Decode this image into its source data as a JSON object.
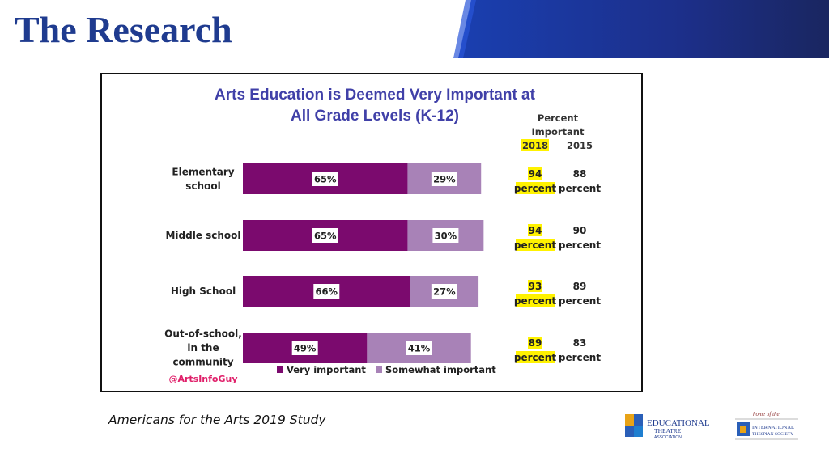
{
  "slide": {
    "title": "The Research",
    "caption": "Americans for the Arts 2019 Study",
    "accent_color": "#1f3b8f"
  },
  "logos": {
    "eta_line1": "EDUCATIONAL",
    "eta_line2": "THEATRE",
    "eta_line3": "ASSOCIATION",
    "home_of": "home of the",
    "its_line1": "INTERNATIONAL",
    "its_line2": "THESPIAN SOCIETY"
  },
  "chart_data": {
    "type": "bar",
    "stacked": true,
    "orientation": "horizontal",
    "title_lines": [
      "Arts Education is Deemed Very Important at",
      "All Grade Levels (K-12)"
    ],
    "categories": [
      [
        "Elementary",
        "school"
      ],
      [
        "Middle school"
      ],
      [
        "High School"
      ],
      [
        "Out-of-school,",
        "in the",
        "community"
      ]
    ],
    "series": [
      {
        "name": "Very important",
        "values": [
          65,
          65,
          66,
          49
        ],
        "labels": [
          "65%",
          "65%",
          "66%",
          "49%"
        ],
        "color": "#7b0a6e"
      },
      {
        "name": "Somewhat important",
        "values": [
          29,
          30,
          27,
          41
        ],
        "labels": [
          "29%",
          "30%",
          "27%",
          "41%"
        ],
        "color": "#a882b7"
      }
    ],
    "xlim": [
      0,
      100
    ],
    "percent_important": {
      "header_lines": [
        "Percent",
        "Important"
      ],
      "years": [
        "2018",
        "2015"
      ],
      "values_2018": [
        "94",
        "94",
        "93",
        "89"
      ],
      "values_2015": [
        "88",
        "90",
        "89",
        "83"
      ],
      "unit": "percent",
      "highlight_color": "#fff200"
    },
    "handle": "@ArtsInfoGuy",
    "legend_position": "bottom"
  }
}
